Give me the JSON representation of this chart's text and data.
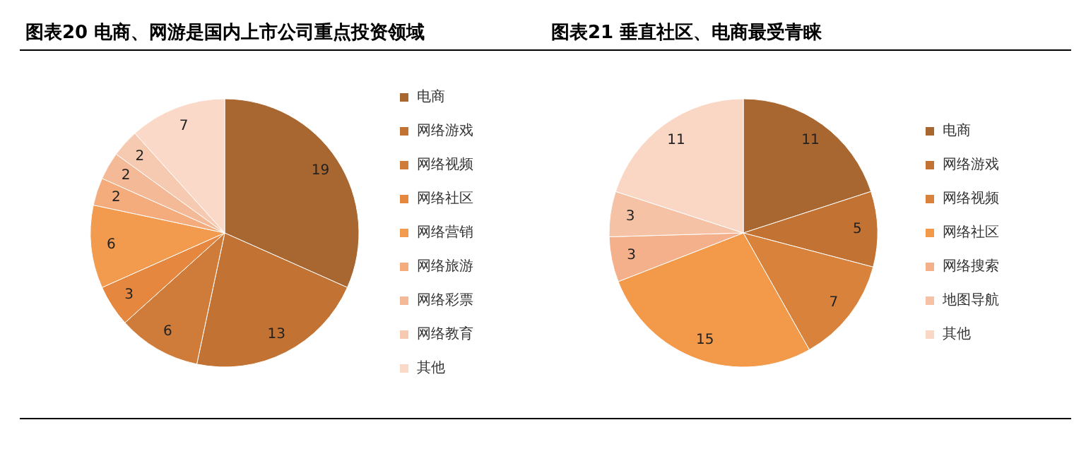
{
  "chart_data": [
    {
      "type": "pie",
      "title": "图表20  电商、网游是国内上市公司重点投资领域",
      "categories": [
        "电商",
        "网络游戏",
        "网络视频",
        "网络社区",
        "网络营销",
        "网络旅游",
        "网络彩票",
        "网络教育",
        "其他"
      ],
      "values": [
        19,
        13,
        6,
        3,
        6,
        2,
        2,
        2,
        7
      ],
      "colors": [
        "#a86630",
        "#c27232",
        "#cf7c3a",
        "#e5873f",
        "#f29a4e",
        "#f4ac7c",
        "#f4b996",
        "#f6cab1",
        "#fbd9c8"
      ],
      "data_labels": true,
      "legend": "right"
    },
    {
      "type": "pie",
      "title": "图表21  垂直社区、电商最受青睐",
      "categories": [
        "电商",
        "网络游戏",
        "网络视频",
        "网络社区",
        "网络搜索",
        "地图导航",
        "其他"
      ],
      "values": [
        11,
        5,
        7,
        15,
        3,
        3,
        11
      ],
      "colors": [
        "#a86630",
        "#c27232",
        "#d9823c",
        "#f2994a",
        "#f3b08a",
        "#f5c2a5",
        "#fad6c4"
      ],
      "data_labels": true,
      "legend": "right"
    }
  ]
}
